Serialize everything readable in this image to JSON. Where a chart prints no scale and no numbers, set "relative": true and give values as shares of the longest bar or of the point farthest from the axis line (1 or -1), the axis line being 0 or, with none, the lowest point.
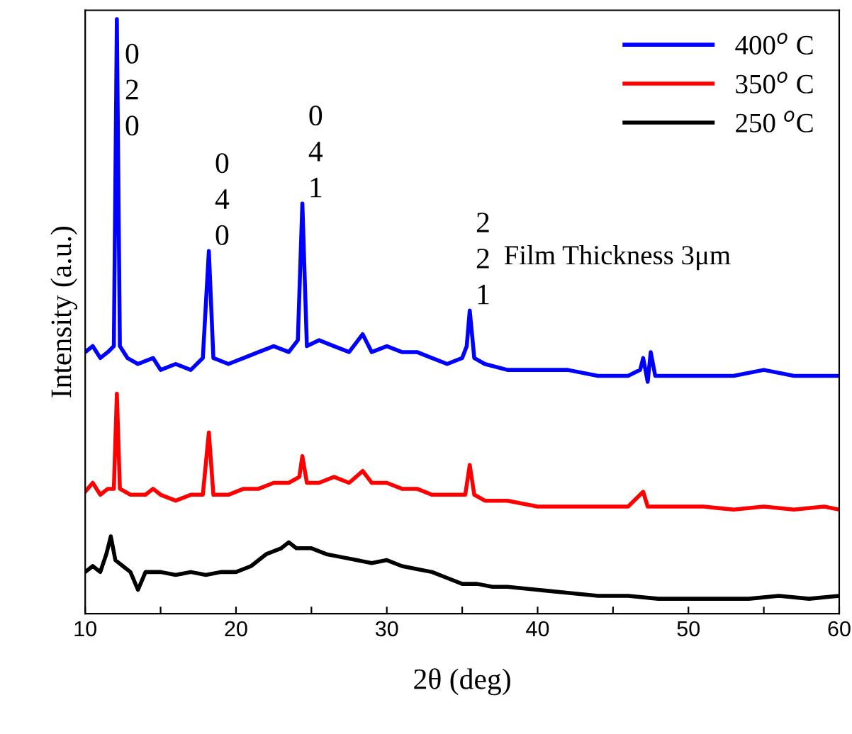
{
  "chart_data": {
    "type": "line",
    "relative": true,
    "xlabel": "2θ (deg)",
    "ylabel": "Intensity (a.u.)",
    "xlim": [
      10,
      60
    ],
    "xticks": [
      10,
      {
        "value": 15,
        "label": null
      },
      20,
      {
        "value": 25,
        "label": null
      },
      30,
      {
        "value": 35,
        "label": null
      },
      40,
      {
        "value": 45,
        "label": null
      },
      50,
      {
        "value": 55,
        "label": null
      },
      60
    ],
    "legend": "top right",
    "grid": false,
    "line_style": "solid",
    "marker": "none",
    "annotations": [
      {
        "text": "0\n2\n0",
        "x": 12.1,
        "y": 1.0
      },
      {
        "text": "0\n4\n0",
        "x": 18.2,
        "y": 0.61
      },
      {
        "text": "0\n4\n1",
        "x": 24.4,
        "y": 0.69
      },
      {
        "text": "2\n2\n1",
        "x": 35.5,
        "y": 0.51
      },
      "Film Thickness 3μm"
    ],
    "series": [
      {
        "name": "400$^{o}$ C",
        "color": "#0000ff",
        "x": [
          10,
          10.5,
          11,
          11.5,
          11.9,
          12.1,
          12.3,
          12.8,
          13.5,
          14.5,
          15,
          16,
          17,
          17.8,
          18.2,
          18.5,
          19.5,
          20.5,
          21.5,
          22.5,
          23.5,
          24.1,
          24.4,
          24.7,
          25.5,
          26.5,
          27.5,
          28.4,
          29,
          30,
          31,
          32,
          33,
          34,
          35,
          35.3,
          35.5,
          35.8,
          36.5,
          38,
          40,
          42,
          44,
          46,
          46.8,
          47,
          47.3,
          47.5,
          47.8,
          49,
          51,
          53,
          55,
          57,
          59,
          60
        ],
        "values": [
          0.44,
          0.45,
          0.43,
          0.44,
          0.45,
          1.0,
          0.45,
          0.43,
          0.42,
          0.43,
          0.41,
          0.42,
          0.41,
          0.43,
          0.61,
          0.43,
          0.42,
          0.43,
          0.44,
          0.45,
          0.44,
          0.46,
          0.69,
          0.45,
          0.46,
          0.45,
          0.44,
          0.47,
          0.44,
          0.45,
          0.44,
          0.44,
          0.43,
          0.42,
          0.43,
          0.45,
          0.51,
          0.43,
          0.42,
          0.41,
          0.41,
          0.41,
          0.4,
          0.4,
          0.41,
          0.43,
          0.39,
          0.44,
          0.4,
          0.4,
          0.4,
          0.4,
          0.41,
          0.4,
          0.4,
          0.4
        ]
      },
      {
        "name": "350$^{o}$ C",
        "color": "#ff0000",
        "x": [
          10,
          10.5,
          11,
          11.5,
          11.9,
          12.1,
          12.3,
          13,
          14,
          14.5,
          15,
          16,
          17,
          17.8,
          18.2,
          18.5,
          19.5,
          20.5,
          21.5,
          22.5,
          23.5,
          24.2,
          24.4,
          24.7,
          25.5,
          26.5,
          27.5,
          28.4,
          29,
          30,
          31,
          32,
          33,
          34,
          35.2,
          35.5,
          35.8,
          36.5,
          38,
          40,
          42,
          44,
          46,
          47,
          47.3,
          49,
          51,
          53,
          55,
          57,
          59,
          60
        ],
        "values": [
          0.205,
          0.22,
          0.2,
          0.21,
          0.21,
          0.37,
          0.21,
          0.2,
          0.2,
          0.21,
          0.2,
          0.19,
          0.2,
          0.2,
          0.305,
          0.2,
          0.2,
          0.21,
          0.21,
          0.22,
          0.22,
          0.23,
          0.265,
          0.22,
          0.22,
          0.23,
          0.22,
          0.24,
          0.22,
          0.22,
          0.21,
          0.21,
          0.2,
          0.2,
          0.2,
          0.25,
          0.2,
          0.19,
          0.19,
          0.18,
          0.18,
          0.18,
          0.18,
          0.205,
          0.18,
          0.18,
          0.18,
          0.175,
          0.18,
          0.175,
          0.18,
          0.175
        ]
      },
      {
        "name": "250 $^{o}$C",
        "color": "#000000",
        "x": [
          10,
          10.5,
          11,
          11.4,
          11.7,
          12,
          12.5,
          13,
          13.5,
          14,
          15,
          16,
          17,
          18,
          19,
          20,
          21,
          22,
          23,
          23.5,
          24,
          25,
          26,
          27,
          28,
          29,
          30,
          31,
          32,
          33,
          34,
          35,
          36,
          37,
          38,
          40,
          42,
          44,
          46,
          48,
          50,
          52,
          54,
          56,
          58,
          60
        ],
        "values": [
          0.07,
          0.08,
          0.07,
          0.1,
          0.13,
          0.09,
          0.08,
          0.07,
          0.04,
          0.07,
          0.07,
          0.065,
          0.07,
          0.065,
          0.07,
          0.07,
          0.08,
          0.1,
          0.11,
          0.12,
          0.11,
          0.11,
          0.1,
          0.095,
          0.09,
          0.085,
          0.09,
          0.08,
          0.075,
          0.07,
          0.06,
          0.05,
          0.05,
          0.045,
          0.045,
          0.04,
          0.035,
          0.03,
          0.03,
          0.025,
          0.025,
          0.025,
          0.025,
          0.03,
          0.025,
          0.03
        ]
      }
    ]
  }
}
